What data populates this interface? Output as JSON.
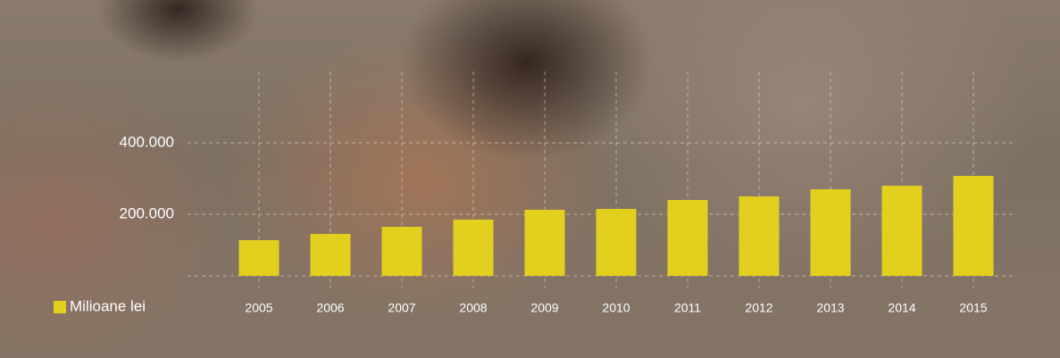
{
  "chart_data": {
    "type": "bar",
    "categories": [
      "2005",
      "2006",
      "2007",
      "2008",
      "2009",
      "2010",
      "2011",
      "2012",
      "2013",
      "2014",
      "2015"
    ],
    "series": [
      {
        "name": "Milioane lei",
        "color": "#e3d01e",
        "values": [
          127500,
          145000,
          165000,
          185000,
          212500,
          215000,
          240000,
          250000,
          270000,
          280000,
          307500
        ]
      }
    ],
    "ylim": [
      27500,
      600000
    ],
    "yticks": [
      {
        "value": 200000,
        "label": "200.000"
      },
      {
        "value": 400000,
        "label": "400.000"
      }
    ],
    "grid": true,
    "legend": "bottom-left"
  }
}
